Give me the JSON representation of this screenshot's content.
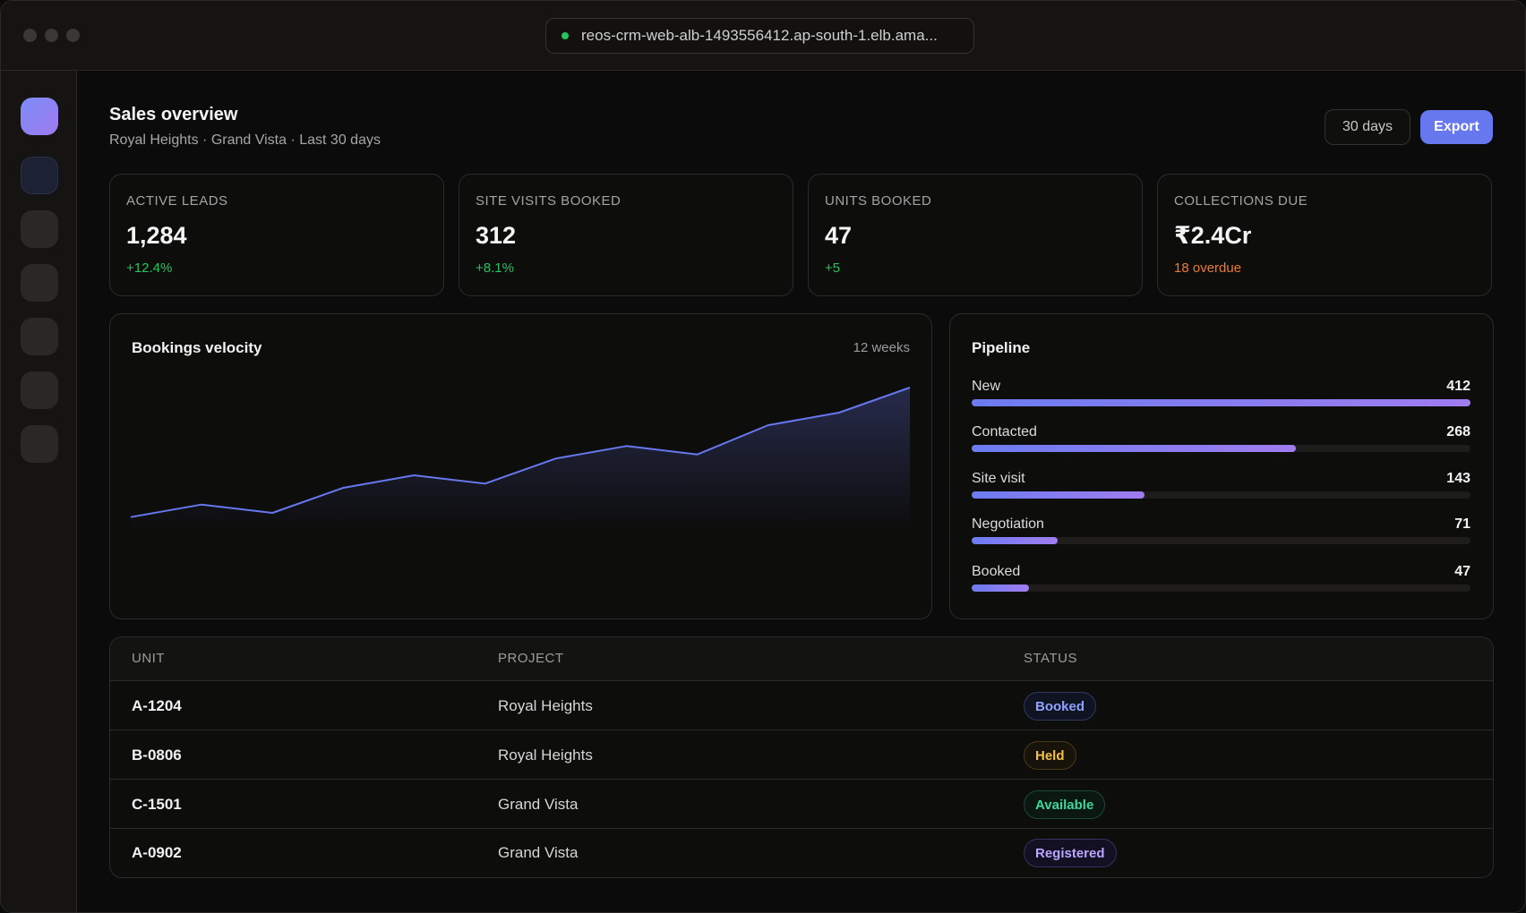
{
  "window": {
    "url": "reos-crm-web-alb-1493556412.ap-south-1.elb.ama..."
  },
  "sidebar": {
    "items": [
      {
        "icon": "brand-logo-icon"
      },
      {
        "icon": "dashboard-icon",
        "active": true
      },
      {
        "icon": "leads-icon"
      },
      {
        "icon": "projects-icon"
      },
      {
        "icon": "units-icon"
      },
      {
        "icon": "payments-icon"
      },
      {
        "icon": "settings-icon"
      }
    ]
  },
  "header": {
    "title": "Sales overview",
    "subtitle": "Royal Heights · Grand Vista · Last 30 days",
    "range_label": "30 days",
    "export_label": "Export"
  },
  "kpis": [
    {
      "label": "ACTIVE LEADS",
      "value": "1,284",
      "delta": "+12.4%",
      "delta_color": "#22c55e"
    },
    {
      "label": "SITE VISITS BOOKED",
      "value": "312",
      "delta": "+8.1%",
      "delta_color": "#22c55e"
    },
    {
      "label": "UNITS BOOKED",
      "value": "47",
      "delta": "+5",
      "delta_color": "#22c55e"
    },
    {
      "label": "COLLECTIONS DUE",
      "value": "₹2.4Cr",
      "delta": "18 overdue",
      "delta_color": "#f07a2a"
    }
  ],
  "velocity": {
    "title": "Bookings velocity",
    "meta": "12 weeks"
  },
  "chart_data": {
    "type": "area",
    "title": "Bookings velocity",
    "x": [
      1,
      2,
      3,
      4,
      5,
      6,
      7,
      8,
      9,
      10,
      11,
      12
    ],
    "values": [
      20,
      23,
      21,
      27,
      30,
      28,
      34,
      37,
      35,
      42,
      45,
      51
    ],
    "ylim": [
      0,
      60
    ],
    "grid": false,
    "color": "#6777ee"
  },
  "pipeline": {
    "title": "Pipeline",
    "max": 412,
    "stages": [
      {
        "label": "New",
        "value": "412",
        "count": 412
      },
      {
        "label": "Contacted",
        "value": "268",
        "count": 268
      },
      {
        "label": "Site visit",
        "value": "143",
        "count": 143
      },
      {
        "label": "Negotiation",
        "value": "71",
        "count": 71
      },
      {
        "label": "Booked",
        "value": "47",
        "count": 47
      }
    ]
  },
  "table": {
    "headers": {
      "unit": "UNIT",
      "project": "PROJECT",
      "status": "STATUS"
    },
    "rows": [
      {
        "unit": "A-1204",
        "project": "Royal Heights",
        "status": "Booked",
        "color": "#8ea2ff",
        "border": "#2f3a5e",
        "bg": "#0f1322"
      },
      {
        "unit": "B-0806",
        "project": "Royal Heights",
        "status": "Held",
        "color": "#f5c04a",
        "border": "#4a3a17",
        "bg": "#17130a"
      },
      {
        "unit": "C-1501",
        "project": "Grand Vista",
        "status": "Available",
        "color": "#3fd69a",
        "border": "#1b4a39",
        "bg": "#0b1812"
      },
      {
        "unit": "A-0902",
        "project": "Grand Vista",
        "status": "Registered",
        "color": "#b9a6ff",
        "border": "#3a3160",
        "bg": "#131024"
      }
    ]
  }
}
